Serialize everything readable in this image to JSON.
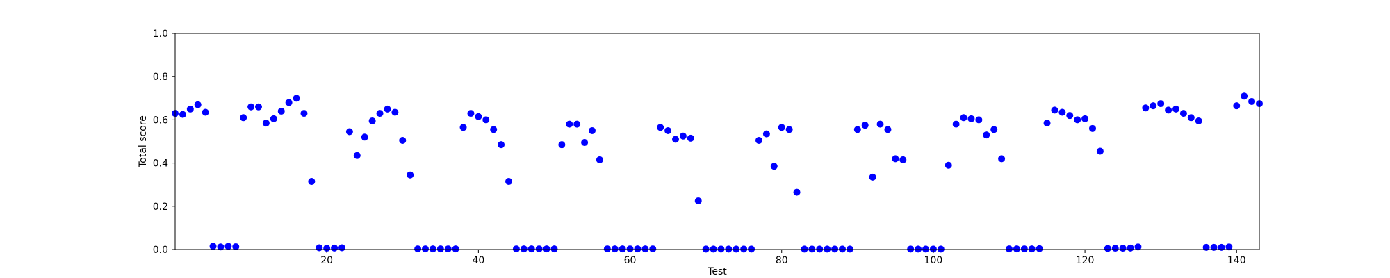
{
  "chart_data": {
    "type": "scatter",
    "title": "",
    "xlabel": "Test",
    "ylabel": "Total score",
    "xlim": [
      0,
      143
    ],
    "ylim": [
      0.0,
      1.0
    ],
    "xticks": [
      20,
      40,
      60,
      80,
      100,
      120,
      140
    ],
    "yticks": [
      0.0,
      0.2,
      0.4,
      0.6,
      0.8,
      1.0
    ],
    "xtick_labels": [
      "20",
      "40",
      "60",
      "80",
      "100",
      "120",
      "140"
    ],
    "ytick_labels": [
      "0.0",
      "0.2",
      "0.4",
      "0.6",
      "0.8",
      "1.0"
    ],
    "grid": false,
    "legend": "none",
    "marker_color": "#0000ff",
    "series": [
      {
        "points": [
          [
            0,
            0.63
          ],
          [
            1,
            0.625
          ],
          [
            2,
            0.65
          ],
          [
            3,
            0.67
          ],
          [
            4,
            0.635
          ],
          [
            5,
            0.015
          ],
          [
            6,
            0.012
          ],
          [
            7,
            0.015
          ],
          [
            8,
            0.013
          ],
          [
            9,
            0.61
          ],
          [
            10,
            0.66
          ],
          [
            11,
            0.66
          ],
          [
            12,
            0.585
          ],
          [
            13,
            0.605
          ],
          [
            14,
            0.64
          ],
          [
            15,
            0.68
          ],
          [
            16,
            0.7
          ],
          [
            17,
            0.63
          ],
          [
            18,
            0.315
          ],
          [
            19,
            0.008
          ],
          [
            20,
            0.006
          ],
          [
            21,
            0.007
          ],
          [
            22,
            0.008
          ],
          [
            23,
            0.545
          ],
          [
            24,
            0.435
          ],
          [
            25,
            0.52
          ],
          [
            26,
            0.595
          ],
          [
            27,
            0.63
          ],
          [
            28,
            0.65
          ],
          [
            29,
            0.635
          ],
          [
            30,
            0.505
          ],
          [
            31,
            0.345
          ],
          [
            32,
            0.003
          ],
          [
            33,
            0.003
          ],
          [
            34,
            0.003
          ],
          [
            35,
            0.003
          ],
          [
            36,
            0.003
          ],
          [
            37,
            0.003
          ],
          [
            38,
            0.565
          ],
          [
            39,
            0.63
          ],
          [
            40,
            0.615
          ],
          [
            41,
            0.6
          ],
          [
            42,
            0.555
          ],
          [
            43,
            0.485
          ],
          [
            44,
            0.315
          ],
          [
            45,
            0.003
          ],
          [
            46,
            0.003
          ],
          [
            47,
            0.003
          ],
          [
            48,
            0.003
          ],
          [
            49,
            0.003
          ],
          [
            50,
            0.003
          ],
          [
            51,
            0.485
          ],
          [
            52,
            0.58
          ],
          [
            53,
            0.58
          ],
          [
            54,
            0.495
          ],
          [
            55,
            0.55
          ],
          [
            56,
            0.415
          ],
          [
            57,
            0.003
          ],
          [
            58,
            0.003
          ],
          [
            59,
            0.003
          ],
          [
            60,
            0.003
          ],
          [
            61,
            0.003
          ],
          [
            62,
            0.003
          ],
          [
            63,
            0.003
          ],
          [
            64,
            0.565
          ],
          [
            65,
            0.55
          ],
          [
            66,
            0.51
          ],
          [
            67,
            0.525
          ],
          [
            68,
            0.515
          ],
          [
            69,
            0.225
          ],
          [
            70,
            0.002
          ],
          [
            71,
            0.002
          ],
          [
            72,
            0.002
          ],
          [
            73,
            0.002
          ],
          [
            74,
            0.002
          ],
          [
            75,
            0.002
          ],
          [
            76,
            0.002
          ],
          [
            77,
            0.505
          ],
          [
            78,
            0.535
          ],
          [
            79,
            0.385
          ],
          [
            80,
            0.565
          ],
          [
            81,
            0.555
          ],
          [
            82,
            0.265
          ],
          [
            83,
            0.002
          ],
          [
            84,
            0.002
          ],
          [
            85,
            0.002
          ],
          [
            86,
            0.002
          ],
          [
            87,
            0.002
          ],
          [
            88,
            0.002
          ],
          [
            89,
            0.002
          ],
          [
            90,
            0.555
          ],
          [
            91,
            0.575
          ],
          [
            92,
            0.335
          ],
          [
            93,
            0.58
          ],
          [
            94,
            0.555
          ],
          [
            95,
            0.42
          ],
          [
            96,
            0.415
          ],
          [
            97,
            0.002
          ],
          [
            98,
            0.002
          ],
          [
            99,
            0.002
          ],
          [
            100,
            0.002
          ],
          [
            101,
            0.002
          ],
          [
            102,
            0.39
          ],
          [
            103,
            0.58
          ],
          [
            104,
            0.61
          ],
          [
            105,
            0.605
          ],
          [
            106,
            0.6
          ],
          [
            107,
            0.53
          ],
          [
            108,
            0.555
          ],
          [
            109,
            0.42
          ],
          [
            110,
            0.003
          ],
          [
            111,
            0.003
          ],
          [
            112,
            0.003
          ],
          [
            113,
            0.003
          ],
          [
            114,
            0.004
          ],
          [
            115,
            0.585
          ],
          [
            116,
            0.645
          ],
          [
            117,
            0.635
          ],
          [
            118,
            0.62
          ],
          [
            119,
            0.6
          ],
          [
            120,
            0.605
          ],
          [
            121,
            0.56
          ],
          [
            122,
            0.455
          ],
          [
            123,
            0.005
          ],
          [
            124,
            0.006
          ],
          [
            125,
            0.006
          ],
          [
            126,
            0.007
          ],
          [
            127,
            0.012
          ],
          [
            128,
            0.655
          ],
          [
            129,
            0.665
          ],
          [
            130,
            0.675
          ],
          [
            131,
            0.645
          ],
          [
            132,
            0.65
          ],
          [
            133,
            0.63
          ],
          [
            134,
            0.61
          ],
          [
            135,
            0.595
          ],
          [
            136,
            0.01
          ],
          [
            137,
            0.01
          ],
          [
            138,
            0.01
          ],
          [
            139,
            0.012
          ],
          [
            140,
            0.665
          ],
          [
            141,
            0.71
          ],
          [
            142,
            0.685
          ],
          [
            143,
            0.675
          ]
        ]
      }
    ]
  }
}
